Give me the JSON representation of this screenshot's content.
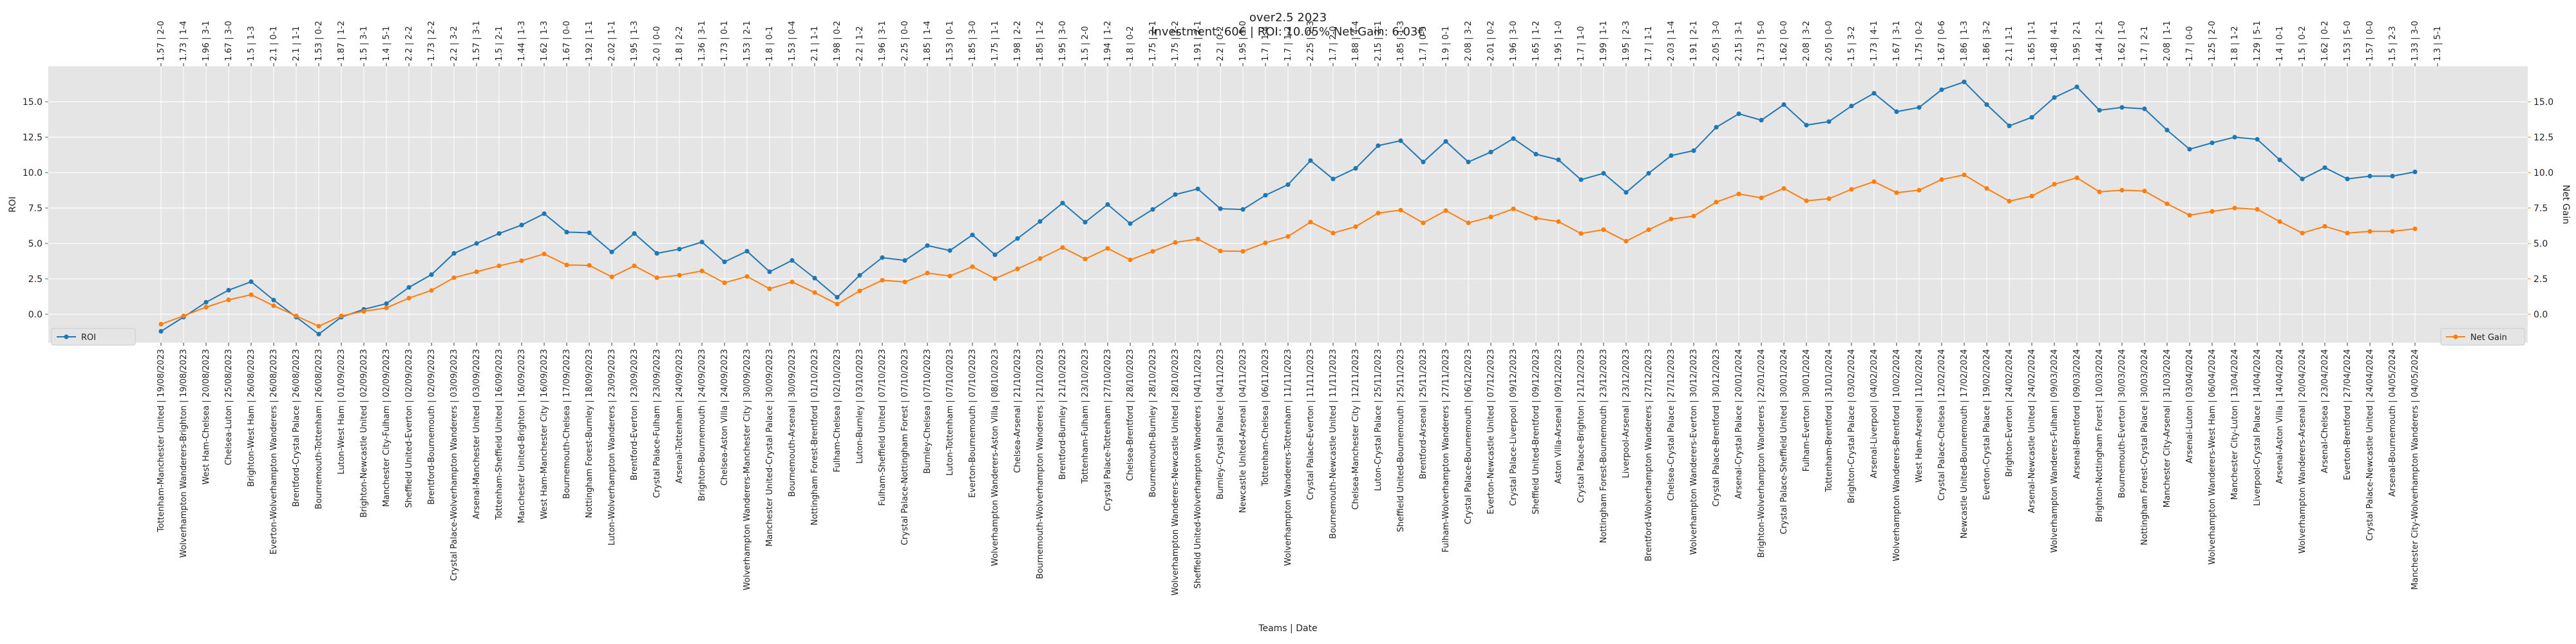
{
  "chart_data": {
    "type": "line",
    "title": "over2.5 2023",
    "subtitle": "Investment: 60€ | ROI: 10.05% Net Gain: 6.03€",
    "xlabel": "Teams | Date",
    "ylabel_left": "ROI",
    "ylabel_right": "Net Gain",
    "ylim": [
      -2.0,
      17.5
    ],
    "yticks": [
      "0.0",
      "2.5",
      "5.0",
      "7.5",
      "10.0",
      "12.5",
      "15.0"
    ],
    "grid": true,
    "legend": {
      "left": "ROI",
      "right": "Net Gain"
    },
    "colors": {
      "roi": "#1f77b4",
      "net_gain": "#ff7f0e",
      "background": "#e5e5e5"
    },
    "categories": [
      "Tottenham-Manchester United | 19/08/2023",
      "Wolverhampton Wanderers-Brighton | 19/08/2023",
      "West Ham-Chelsea | 20/08/2023",
      "Chelsea-Luton | 25/08/2023",
      "Brighton-West Ham | 26/08/2023",
      "Everton-Wolverhampton Wanderers | 26/08/2023",
      "Brentford-Crystal Palace | 26/08/2023",
      "Bournemouth-Tottenham | 26/08/2023",
      "Luton-West Ham | 01/09/2023",
      "Brighton-Newcastle United | 02/09/2023",
      "Manchester City-Fulham | 02/09/2023",
      "Sheffield United-Everton | 02/09/2023",
      "Brentford-Bournemouth | 02/09/2023",
      "Crystal Palace-Wolverhampton Wanderers | 03/09/2023",
      "Arsenal-Manchester United | 03/09/2023",
      "Tottenham-Sheffield United | 16/09/2023",
      "Manchester United-Brighton | 16/09/2023",
      "West Ham-Manchester City | 16/09/2023",
      "Bournemouth-Chelsea | 17/09/2023",
      "Nottingham Forest-Burnley | 18/09/2023",
      "Luton-Wolverhampton Wanderers | 23/09/2023",
      "Brentford-Everton | 23/09/2023",
      "Crystal Palace-Fulham | 23/09/2023",
      "Arsenal-Tottenham | 24/09/2023",
      "Brighton-Bournemouth | 24/09/2023",
      "Chelsea-Aston Villa | 24/09/2023",
      "Wolverhampton Wanderers-Manchester City | 30/09/2023",
      "Manchester United-Crystal Palace | 30/09/2023",
      "Bournemouth-Arsenal | 30/09/2023",
      "Nottingham Forest-Brentford | 01/10/2023",
      "Fulham-Chelsea | 02/10/2023",
      "Luton-Burnley | 03/10/2023",
      "Fulham-Sheffield United | 07/10/2023",
      "Crystal Palace-Nottingham Forest | 07/10/2023",
      "Burnley-Chelsea | 07/10/2023",
      "Luton-Tottenham | 07/10/2023",
      "Everton-Bournemouth | 07/10/2023",
      "Wolverhampton Wanderers-Aston Villa | 08/10/2023",
      "Chelsea-Arsenal | 21/10/2023",
      "Bournemouth-Wolverhampton Wanderers | 21/10/2023",
      "Brentford-Burnley | 21/10/2023",
      "Tottenham-Fulham | 23/10/2023",
      "Crystal Palace-Tottenham | 27/10/2023",
      "Chelsea-Brentford | 28/10/2023",
      "Bournemouth-Burnley | 28/10/2023",
      "Wolverhampton Wanderers-Newcastle United | 28/10/2023",
      "Sheffield United-Wolverhampton Wanderers | 04/11/2023",
      "Burnley-Crystal Palace | 04/11/2023",
      "Newcastle United-Arsenal | 04/11/2023",
      "Tottenham-Chelsea | 06/11/2023",
      "Wolverhampton Wanderers-Tottenham | 11/11/2023",
      "Crystal Palace-Everton | 11/11/2023",
      "Bournemouth-Newcastle United | 11/11/2023",
      "Chelsea-Manchester City | 12/11/2023",
      "Luton-Crystal Palace | 25/11/2023",
      "Sheffield United-Bournemouth | 25/11/2023",
      "Brentford-Arsenal | 25/11/2023",
      "Fulham-Wolverhampton Wanderers | 27/11/2023",
      "Crystal Palace-Bournemouth | 06/12/2023",
      "Everton-Newcastle United | 07/12/2023",
      "Crystal Palace-Liverpool | 09/12/2023",
      "Sheffield United-Brentford | 09/12/2023",
      "Aston Villa-Arsenal | 09/12/2023",
      "Crystal Palace-Brighton | 21/12/2023",
      "Nottingham Forest-Bournemouth | 23/12/2023",
      "Liverpool-Arsenal | 23/12/2023",
      "Brentford-Wolverhampton Wanderers | 27/12/2023",
      "Chelsea-Crystal Palace | 27/12/2023",
      "Wolverhampton Wanderers-Everton | 30/12/2023",
      "Crystal Palace-Brentford | 30/12/2023",
      "Arsenal-Crystal Palace | 20/01/2024",
      "Brighton-Wolverhampton Wanderers | 22/01/2024",
      "Crystal Palace-Sheffield United | 30/01/2024",
      "Fulham-Everton | 30/01/2024",
      "Tottenham-Brentford | 31/01/2024",
      "Brighton-Crystal Palace | 03/02/2024",
      "Arsenal-Liverpool | 04/02/2024",
      "Wolverhampton Wanderers-Brentford | 10/02/2024",
      "West Ham-Arsenal | 11/02/2024",
      "Crystal Palace-Chelsea | 12/02/2024",
      "Newcastle United-Bournemouth | 17/02/2024",
      "Everton-Crystal Palace | 19/02/2024",
      "Brighton-Everton | 24/02/2024",
      "Arsenal-Newcastle United | 24/02/2024",
      "Wolverhampton Wanderers-Fulham | 09/03/2024",
      "Arsenal-Brentford | 09/03/2024",
      "Brighton-Nottingham Forest | 10/03/2024",
      "Bournemouth-Everton | 30/03/2024",
      "Nottingham Forest-Crystal Palace | 30/03/2024",
      "Manchester City-Arsenal | 31/03/2024",
      "Arsenal-Luton | 03/04/2024",
      "Wolverhampton Wanderers-West Ham | 06/04/2024",
      "Manchester City-Luton | 13/04/2024",
      "Liverpool-Crystal Palace | 14/04/2024",
      "Arsenal-Aston Villa | 14/04/2024",
      "Wolverhampton Wanderers-Arsenal | 20/04/2024",
      "Arsenal-Chelsea | 23/04/2024",
      "Everton-Brentford | 27/04/2024",
      "Crystal Palace-Newcastle United | 24/04/2024",
      "Arsenal-Bournemouth | 04/05/2024",
      "Manchester City-Wolverhampton Wanderers | 04/05/2024"
    ],
    "top_labels": [
      "1.57 | 2-0",
      "1.73 | 1-4",
      "1.96 | 3-1",
      "1.67 | 3-0",
      "1.5 | 1-3",
      "2.1 | 0-1",
      "2.1 | 1-1",
      "1.53 | 0-2",
      "1.87 | 1-2",
      "1.5 | 3-1",
      "1.4 | 5-1",
      "2.2 | 2-2",
      "1.73 | 2-2",
      "2.2 | 3-2",
      "1.57 | 3-1",
      "1.5 | 2-1",
      "1.44 | 1-3",
      "1.62 | 1-3",
      "1.67 | 0-0",
      "1.92 | 1-1",
      "2.02 | 1-1",
      "1.95 | 1-3",
      "2.0 | 0-0",
      "1.8 | 2-2",
      "1.36 | 3-1",
      "1.73 | 0-1",
      "1.53 | 2-1",
      "1.8 | 0-1",
      "1.53 | 0-4",
      "2.1 | 1-1",
      "1.98 | 0-2",
      "2.2 | 1-2",
      "1.96 | 3-1",
      "2.25 | 0-0",
      "1.85 | 1-4",
      "1.53 | 0-1",
      "1.85 | 3-0",
      "1.75 | 1-1",
      "1.98 | 2-2",
      "1.85 | 1-2",
      "1.95 | 3-0",
      "1.5 | 2-0",
      "1.94 | 1-2",
      "1.8 | 0-2",
      "1.75 | 2-1",
      "1.75 | 2-2",
      "1.91 | 2-1",
      "2.2 | 0-2",
      "1.95 | 1-0",
      "1.7 | 1-4",
      "1.7 | 1-2",
      "2.25 | 2-3",
      "1.7 | 2-0",
      "1.88 | 4-4",
      "2.15 | 2-1",
      "1.85 | 1-3",
      "1.7 | 0-5",
      "1.9 | 0-1",
      "2.08 | 3-2",
      "2.01 | 0-2",
      "1.96 | 3-0",
      "1.65 | 1-2",
      "1.95 | 1-0",
      "1.7 | 1-0",
      "1.99 | 1-1",
      "1.95 | 2-3",
      "1.7 | 1-1",
      "2.03 | 1-4",
      "1.91 | 2-1",
      "2.05 | 3-0",
      "2.15 | 3-1",
      "1.73 | 5-0",
      "1.62 | 0-0",
      "2.08 | 3-2",
      "2.05 | 0-0",
      "1.5 | 3-2",
      "1.73 | 4-1",
      "1.67 | 3-1",
      "1.75 | 0-2",
      "1.67 | 0-6",
      "1.86 | 1-3",
      "1.86 | 3-2",
      "2.1 | 1-1",
      "1.65 | 1-1",
      "1.48 | 4-1",
      "1.95 | 2-1",
      "1.44 | 2-1",
      "1.62 | 1-0",
      "1.7 | 2-1",
      "2.08 | 1-1",
      "1.7 | 0-0",
      "1.25 | 2-0",
      "1.8 | 1-2",
      "1.29 | 5-1",
      "1.4 | 0-1",
      "1.5 | 0-2",
      "1.62 | 0-2",
      "1.53 | 5-0",
      "1.57 | 0-0",
      "1.5 | 2-3",
      "1.33 | 3-0",
      "1.3 | 5-1"
    ],
    "series": [
      {
        "name": "ROI",
        "axis": "left",
        "values": [
          -1.2,
          -0.2,
          0.85,
          1.7,
          2.3,
          1.0,
          -0.2,
          -1.4,
          -0.2,
          0.35,
          0.75,
          1.9,
          2.8,
          4.3,
          5.0,
          5.7,
          6.3,
          7.1,
          5.8,
          5.75,
          4.4,
          5.7,
          4.3,
          4.6,
          5.1,
          3.7,
          4.45,
          3.0,
          3.8,
          2.55,
          1.2,
          2.75,
          4.0,
          3.8,
          4.85,
          4.5,
          5.6,
          4.2,
          5.35,
          6.55,
          7.85,
          6.5,
          7.75,
          6.4,
          7.4,
          8.45,
          8.85,
          7.45,
          7.4,
          8.4,
          9.15,
          10.85,
          9.55,
          10.3,
          11.9,
          12.25,
          10.75,
          12.2,
          10.75,
          11.45,
          12.4,
          11.3,
          10.9,
          9.5,
          9.95,
          8.6,
          9.95,
          11.2,
          11.55,
          13.2,
          14.15,
          13.7,
          14.8,
          13.35,
          13.6,
          14.7,
          15.6,
          14.3,
          14.6,
          15.85,
          16.4,
          14.8,
          13.3,
          13.9,
          15.3,
          16.05,
          14.4,
          14.6,
          14.5,
          13.0,
          11.65,
          12.1,
          12.5,
          12.35,
          10.9,
          9.55,
          10.35,
          9.55,
          9.75,
          9.75,
          10.05
        ]
      },
      {
        "name": "Net Gain",
        "axis": "right",
        "values": [
          -0.7,
          -0.12,
          0.5,
          1.02,
          1.38,
          0.6,
          -0.12,
          -0.84,
          -0.12,
          0.21,
          0.45,
          1.14,
          1.68,
          2.58,
          3.0,
          3.42,
          3.78,
          4.26,
          3.48,
          3.45,
          2.64,
          3.42,
          2.58,
          2.76,
          3.06,
          2.22,
          2.67,
          1.8,
          2.28,
          1.53,
          0.72,
          1.65,
          2.4,
          2.28,
          2.91,
          2.7,
          3.36,
          2.52,
          3.21,
          3.93,
          4.71,
          3.9,
          4.65,
          3.84,
          4.44,
          5.07,
          5.31,
          4.47,
          4.44,
          5.04,
          5.49,
          6.51,
          5.73,
          6.18,
          7.14,
          7.35,
          6.45,
          7.32,
          6.45,
          6.87,
          7.44,
          6.78,
          6.54,
          5.7,
          5.97,
          5.16,
          5.97,
          6.72,
          6.93,
          7.92,
          8.49,
          8.22,
          8.88,
          8.01,
          8.16,
          8.82,
          9.36,
          8.58,
          8.76,
          9.51,
          9.84,
          8.88,
          7.98,
          8.34,
          9.18,
          9.63,
          8.64,
          8.76,
          8.7,
          7.8,
          6.99,
          7.26,
          7.5,
          7.41,
          6.54,
          5.73,
          6.21,
          5.73,
          5.85,
          5.85,
          6.03
        ]
      }
    ]
  }
}
